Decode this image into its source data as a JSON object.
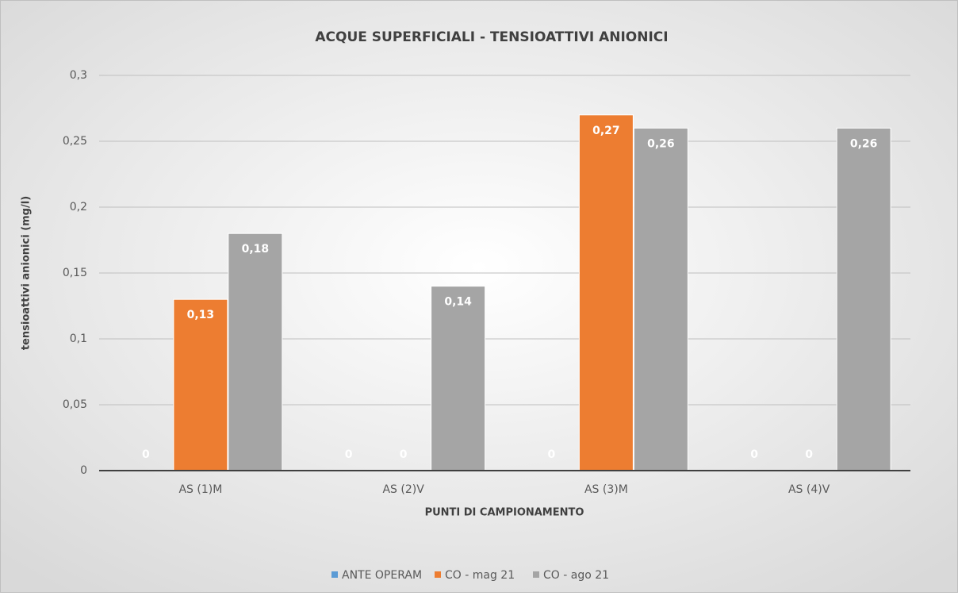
{
  "chart_data": {
    "type": "bar",
    "title": "ACQUE SUPERFICIALI - TENSIOATTIVI ANIONICI",
    "x_label": "PUNTI DI CAMPIONAMENTO",
    "y_label": "tensioattivi anionici (mg/l)",
    "categories": [
      "AS (1)M",
      "AS (2)V",
      "AS (3)M",
      "AS (4)V"
    ],
    "series": [
      {
        "name": "ANTE OPERAM",
        "color": "#5b9bd5",
        "values": [
          0,
          0,
          0,
          0
        ],
        "value_labels": [
          "0",
          "0",
          "0",
          "0"
        ]
      },
      {
        "name": "CO - mag 21",
        "color": "#ed7d31",
        "values": [
          0.13,
          0,
          0.27,
          0
        ],
        "value_labels": [
          "0,13",
          "0",
          "0,27",
          "0"
        ]
      },
      {
        "name": "CO - ago 21",
        "color": "#a5a5a5",
        "values": [
          0.18,
          0.14,
          0.26,
          0.26
        ],
        "value_labels": [
          "0,18",
          "0,14",
          "0,26",
          "0,26"
        ]
      }
    ],
    "ylim": [
      0,
      0.3
    ],
    "yticks": [
      0,
      {
        "value": 0.05,
        "label": "0,05"
      },
      {
        "value": 0.1,
        "label": "0,1"
      },
      {
        "value": 0.15,
        "label": "0,15"
      },
      {
        "value": 0.2,
        "label": "0,2"
      },
      {
        "value": 0.25,
        "label": "0,25"
      },
      {
        "value": 0.3,
        "label": "0,3"
      }
    ],
    "grid": true,
    "legend": "bottom"
  }
}
